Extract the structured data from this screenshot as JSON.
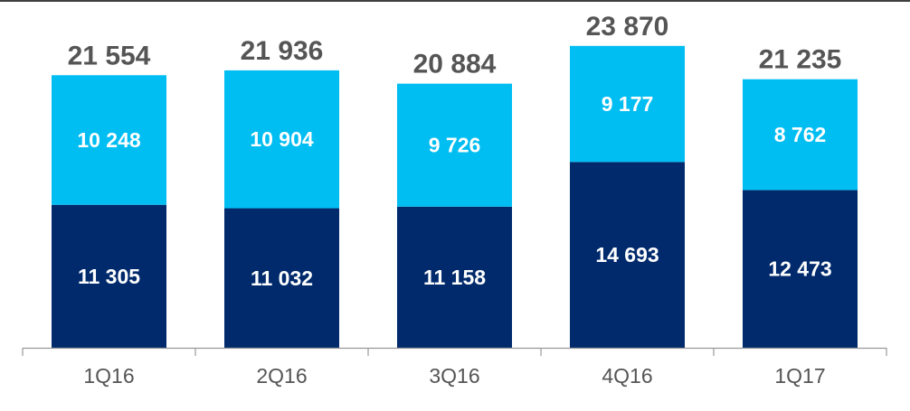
{
  "chart_data": {
    "type": "bar",
    "stacked": true,
    "categories": [
      "1Q16",
      "2Q16",
      "3Q16",
      "4Q16",
      "1Q17"
    ],
    "series": [
      {
        "values": [
          11305,
          11032,
          11158,
          14693,
          12473
        ],
        "color": "#002a6c"
      },
      {
        "values": [
          10248,
          10904,
          9726,
          9177,
          8762
        ],
        "color": "#00bdf2"
      }
    ],
    "series_labels": [
      [
        "11 305",
        "11 032",
        "11 158",
        "14 693",
        "12 473"
      ],
      [
        "10 248",
        "10 904",
        "9 726",
        "9 177",
        "8 762"
      ]
    ],
    "totals": [
      21554,
      21936,
      20884,
      23870,
      21235
    ],
    "total_labels": [
      "21 554",
      "21 936",
      "20 884",
      "23 870",
      "21 235"
    ],
    "title": "",
    "xlabel": "",
    "ylabel": "",
    "ylim": [
      0,
      27500
    ],
    "grid": false,
    "legend": "none",
    "colors": {
      "total_label": "#555555",
      "segment_label": "#ffffff",
      "axis": "#999999",
      "tick_label": "#555555",
      "top_rule": "#000000"
    }
  }
}
